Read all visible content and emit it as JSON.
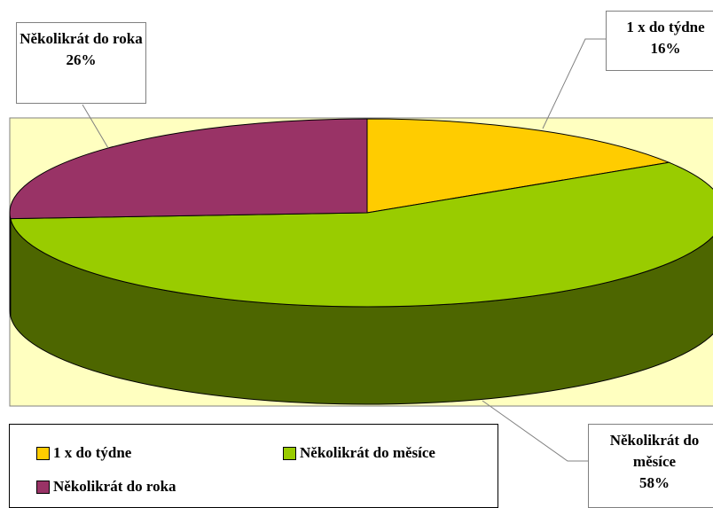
{
  "chart_data": {
    "type": "pie",
    "categories": [
      "1 x do týdne",
      "Několikrát do měsíce",
      "Několikrát do roka"
    ],
    "values": [
      16,
      58,
      26
    ],
    "value_labels": [
      "16%",
      "58%",
      "26%"
    ],
    "colors": [
      "#ffcc00",
      "#99cc00",
      "#993366"
    ],
    "side_colors": [
      "#806600",
      "#4d6600",
      "#4d1a33"
    ],
    "legend": "bottom-left"
  }
}
